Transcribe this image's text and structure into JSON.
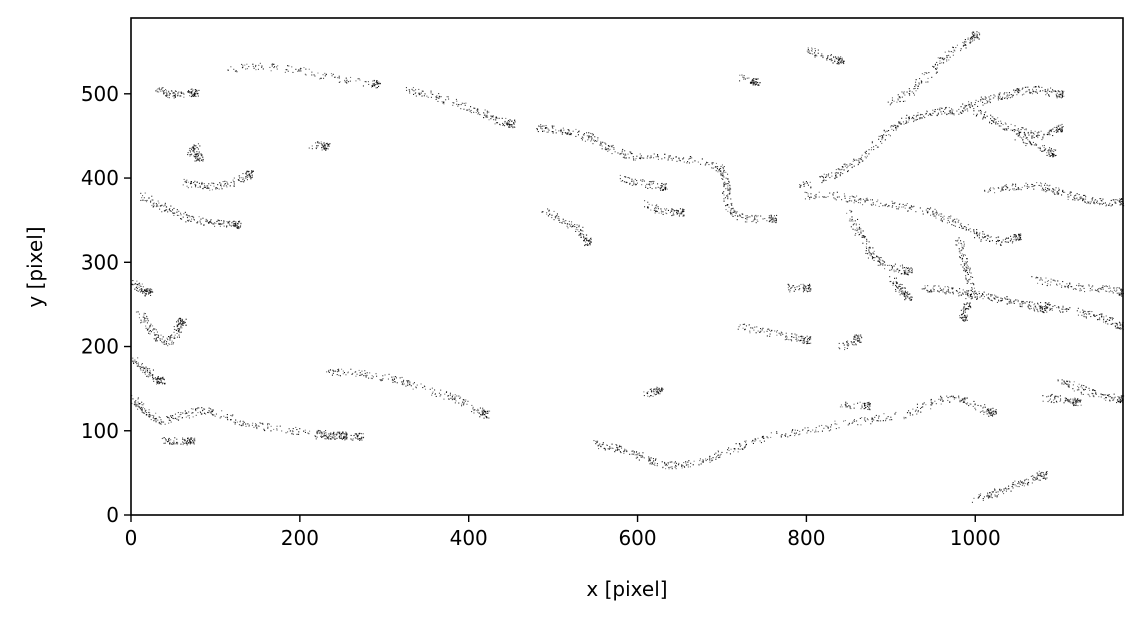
{
  "chart_data": {
    "type": "scatter",
    "title": "",
    "xlabel": "x [pixel]",
    "ylabel": "y [pixel]",
    "xlim": [
      0,
      1175
    ],
    "ylim": [
      0,
      590
    ],
    "xticks": [
      0,
      200,
      400,
      600,
      800,
      1000
    ],
    "yticks": [
      0,
      100,
      200,
      300,
      400,
      500
    ],
    "xtick_labels": [
      "0",
      "200",
      "400",
      "600",
      "800",
      "1000"
    ],
    "ytick_labels": [
      "0",
      "100",
      "200",
      "300",
      "400",
      "500"
    ],
    "grid": false,
    "legend": "none",
    "marker_color": "#000000",
    "description_of_points": "dense field of tiny black point markers forming filament-like streaks",
    "series": [
      {
        "points_by_streak": [
          [
            [
              30,
              505
            ],
            [
              45,
              500
            ],
            [
              60,
              500
            ],
            [
              75,
              502
            ]
          ],
          [
            [
              115,
              530
            ],
            [
              160,
              533
            ],
            [
              200,
              528
            ],
            [
              250,
              518
            ],
            [
              290,
              512
            ]
          ],
          [
            [
              70,
              430
            ],
            [
              75,
              438
            ],
            [
              80,
              425
            ]
          ],
          [
            [
              60,
              395
            ],
            [
              80,
              392
            ],
            [
              100,
              390
            ],
            [
              120,
              395
            ],
            [
              140,
              405
            ]
          ],
          [
            [
              10,
              380
            ],
            [
              30,
              370
            ],
            [
              50,
              360
            ],
            [
              70,
              352
            ],
            [
              90,
              348
            ],
            [
              110,
              345
            ],
            [
              125,
              345
            ]
          ],
          [
            [
              0,
              275
            ],
            [
              10,
              270
            ],
            [
              20,
              265
            ]
          ],
          [
            [
              10,
              240
            ],
            [
              20,
              225
            ],
            [
              30,
              210
            ],
            [
              45,
              205
            ],
            [
              55,
              220
            ],
            [
              60,
              230
            ]
          ],
          [
            [
              0,
              185
            ],
            [
              15,
              175
            ],
            [
              25,
              165
            ],
            [
              35,
              160
            ]
          ],
          [
            [
              0,
              140
            ],
            [
              10,
              130
            ],
            [
              20,
              120
            ],
            [
              35,
              112
            ],
            [
              60,
              118
            ],
            [
              80,
              125
            ],
            [
              100,
              122
            ],
            [
              130,
              110
            ],
            [
              160,
              105
            ],
            [
              200,
              100
            ],
            [
              240,
              95
            ],
            [
              270,
              93
            ]
          ],
          [
            [
              40,
              90
            ],
            [
              55,
              88
            ],
            [
              70,
              88
            ]
          ],
          [
            [
              220,
              95
            ],
            [
              235,
              95
            ],
            [
              250,
              95
            ]
          ],
          [
            [
              230,
              170
            ],
            [
              260,
              170
            ],
            [
              290,
              165
            ],
            [
              320,
              160
            ],
            [
              350,
              150
            ],
            [
              380,
              140
            ],
            [
              400,
              132
            ],
            [
              420,
              120
            ]
          ],
          [
            [
              215,
              440
            ],
            [
              230,
              438
            ]
          ],
          [
            [
              325,
              505
            ],
            [
              350,
              500
            ],
            [
              380,
              490
            ],
            [
              410,
              480
            ],
            [
              430,
              470
            ],
            [
              450,
              465
            ]
          ],
          [
            [
              480,
              460
            ],
            [
              500,
              458
            ],
            [
              520,
              455
            ],
            [
              540,
              450
            ],
            [
              560,
              440
            ],
            [
              580,
              430
            ],
            [
              600,
              425
            ],
            [
              640,
              425
            ],
            [
              680,
              420
            ],
            [
              700,
              410
            ],
            [
              705,
              395
            ],
            [
              705,
              380
            ],
            [
              710,
              360
            ],
            [
              730,
              352
            ],
            [
              760,
              352
            ]
          ],
          [
            [
              580,
              400
            ],
            [
              600,
              395
            ],
            [
              630,
              390
            ]
          ],
          [
            [
              610,
              370
            ],
            [
              630,
              360
            ],
            [
              650,
              360
            ]
          ],
          [
            [
              490,
              360
            ],
            [
              510,
              350
            ],
            [
              530,
              340
            ],
            [
              540,
              325
            ]
          ],
          [
            [
              550,
              85
            ],
            [
              570,
              80
            ],
            [
              590,
              75
            ],
            [
              610,
              68
            ],
            [
              630,
              60
            ],
            [
              650,
              60
            ],
            [
              680,
              65
            ],
            [
              700,
              75
            ],
            [
              730,
              85
            ],
            [
              760,
              95
            ],
            [
              800,
              100
            ],
            [
              840,
              108
            ],
            [
              880,
              115
            ],
            [
              920,
              120
            ],
            [
              950,
              135
            ],
            [
              980,
              140
            ],
            [
              1000,
              130
            ],
            [
              1020,
              122
            ]
          ],
          [
            [
              610,
              145
            ],
            [
              625,
              148
            ]
          ],
          [
            [
              720,
              225
            ],
            [
              750,
              218
            ],
            [
              780,
              212
            ],
            [
              800,
              208
            ]
          ],
          [
            [
              840,
              200
            ],
            [
              860,
              210
            ]
          ],
          [
            [
              780,
              270
            ],
            [
              800,
              270
            ]
          ],
          [
            [
              790,
              390
            ],
            [
              820,
              400
            ],
            [
              840,
              410
            ],
            [
              860,
              420
            ],
            [
              880,
              440
            ],
            [
              900,
              460
            ],
            [
              920,
              470
            ],
            [
              940,
              475
            ],
            [
              960,
              480
            ],
            [
              980,
              480
            ],
            [
              1000,
              490
            ],
            [
              1020,
              495
            ],
            [
              1040,
              500
            ],
            [
              1060,
              505
            ],
            [
              1080,
              505
            ],
            [
              1100,
              500
            ]
          ],
          [
            [
              900,
              490
            ],
            [
              920,
              500
            ],
            [
              940,
              520
            ],
            [
              960,
              540
            ],
            [
              980,
              555
            ],
            [
              1000,
              570
            ]
          ],
          [
            [
              1000,
              480
            ],
            [
              1020,
              470
            ],
            [
              1040,
              460
            ],
            [
              1060,
              455
            ],
            [
              1080,
              450
            ],
            [
              1100,
              460
            ]
          ],
          [
            [
              800,
              380
            ],
            [
              830,
              380
            ],
            [
              860,
              375
            ],
            [
              890,
              370
            ],
            [
              920,
              365
            ],
            [
              950,
              360
            ],
            [
              970,
              350
            ],
            [
              990,
              340
            ],
            [
              1010,
              330
            ],
            [
              1030,
              325
            ],
            [
              1050,
              330
            ]
          ],
          [
            [
              850,
              360
            ],
            [
              860,
              340
            ],
            [
              870,
              320
            ],
            [
              880,
              305
            ],
            [
              900,
              295
            ],
            [
              920,
              290
            ]
          ],
          [
            [
              940,
              270
            ],
            [
              960,
              268
            ],
            [
              980,
              265
            ],
            [
              1000,
              262
            ],
            [
              1020,
              258
            ],
            [
              1040,
              255
            ],
            [
              1060,
              250
            ],
            [
              1080,
              245
            ]
          ],
          [
            [
              980,
              330
            ],
            [
              985,
              310
            ],
            [
              990,
              290
            ],
            [
              995,
              270
            ],
            [
              990,
              250
            ],
            [
              985,
              235
            ]
          ],
          [
            [
              1010,
              385
            ],
            [
              1040,
              390
            ],
            [
              1070,
              392
            ],
            [
              1090,
              388
            ],
            [
              1110,
              380
            ],
            [
              1130,
              375
            ],
            [
              1150,
              372
            ],
            [
              1175,
              372
            ]
          ],
          [
            [
              1070,
              280
            ],
            [
              1100,
              275
            ],
            [
              1130,
              270
            ],
            [
              1160,
              268
            ],
            [
              1175,
              265
            ]
          ],
          [
            [
              1080,
              250
            ],
            [
              1100,
              245
            ],
            [
              1130,
              240
            ],
            [
              1150,
              235
            ],
            [
              1170,
              225
            ]
          ],
          [
            [
              1100,
              160
            ],
            [
              1120,
              152
            ],
            [
              1140,
              145
            ],
            [
              1160,
              140
            ],
            [
              1175,
              138
            ]
          ],
          [
            [
              1080,
              140
            ],
            [
              1100,
              138
            ],
            [
              1120,
              135
            ]
          ],
          [
            [
              1000,
              20
            ],
            [
              1020,
              25
            ],
            [
              1040,
              32
            ],
            [
              1060,
              40
            ],
            [
              1080,
              48
            ]
          ],
          [
            [
              900,
              280
            ],
            [
              910,
              270
            ],
            [
              920,
              260
            ]
          ],
          [
            [
              840,
              130
            ],
            [
              870,
              130
            ]
          ],
          [
            [
              720,
              520
            ],
            [
              740,
              515
            ]
          ],
          [
            [
              800,
              555
            ],
            [
              820,
              545
            ],
            [
              840,
              540
            ]
          ],
          [
            [
              1050,
              450
            ],
            [
              1070,
              440
            ],
            [
              1090,
              430
            ]
          ]
        ]
      }
    ]
  }
}
